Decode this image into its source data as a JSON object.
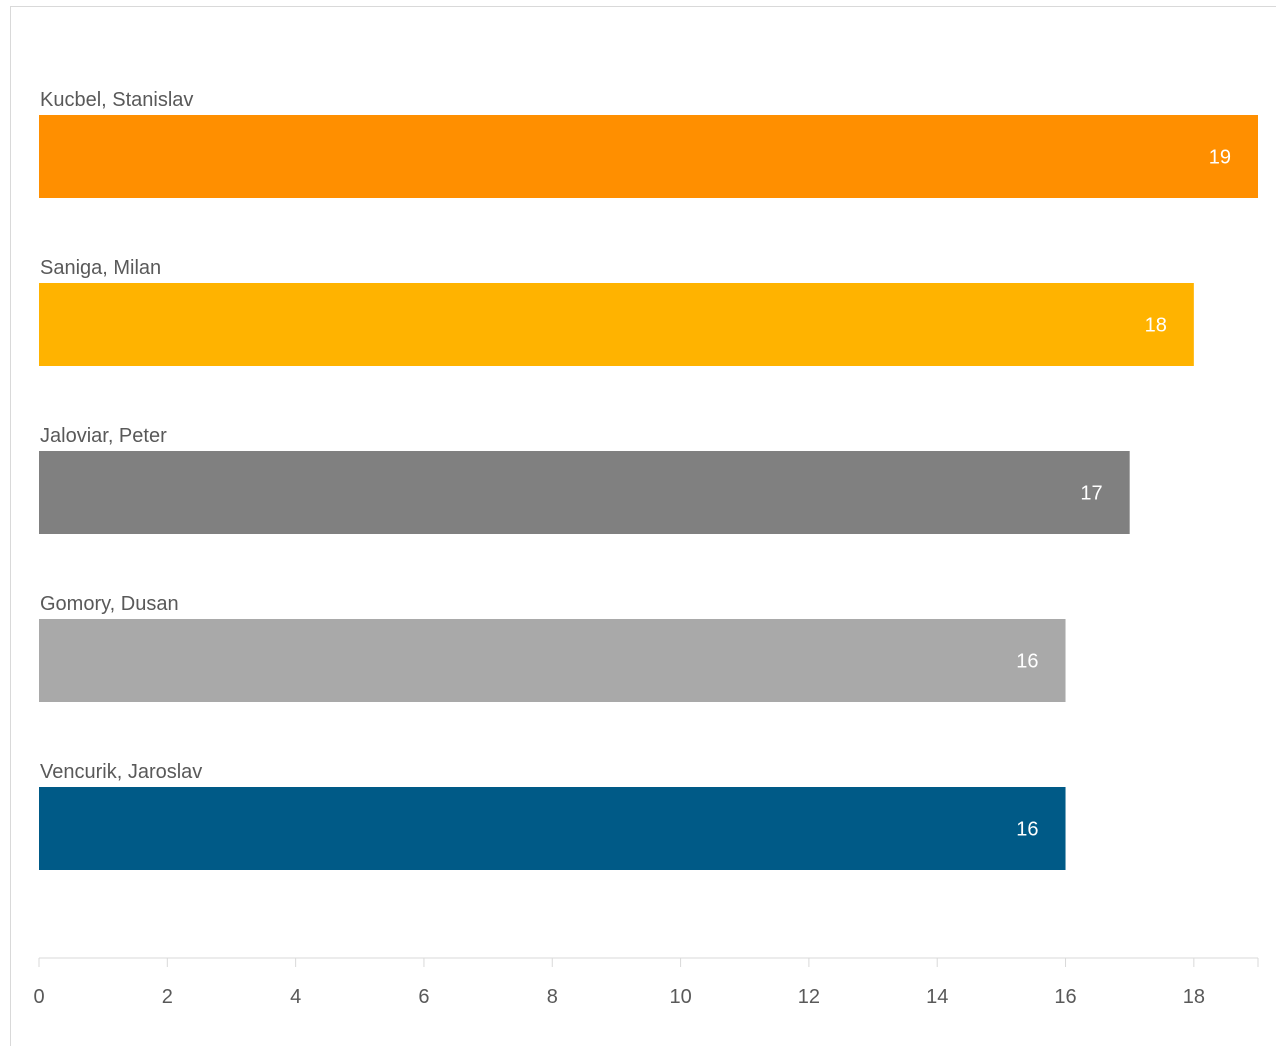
{
  "chart_data": {
    "type": "bar",
    "orientation": "horizontal",
    "categories": [
      "Kucbel, Stanislav",
      "Saniga, Milan",
      "Jaloviar, Peter",
      "Gomory, Dusan",
      "Vencurik, Jaroslav"
    ],
    "values": [
      19,
      18,
      17,
      16,
      16
    ],
    "colors": [
      "#FF8F00",
      "#FFB300",
      "#808080",
      "#A9A9A9",
      "#005A87"
    ],
    "value_label_color": "#FFFFFF",
    "xlim": [
      0,
      19
    ],
    "xticks": [
      0,
      2,
      4,
      6,
      8,
      10,
      12,
      14,
      16,
      18
    ],
    "grid": false,
    "legend": "none",
    "title": "",
    "xlabel": "",
    "ylabel": ""
  }
}
